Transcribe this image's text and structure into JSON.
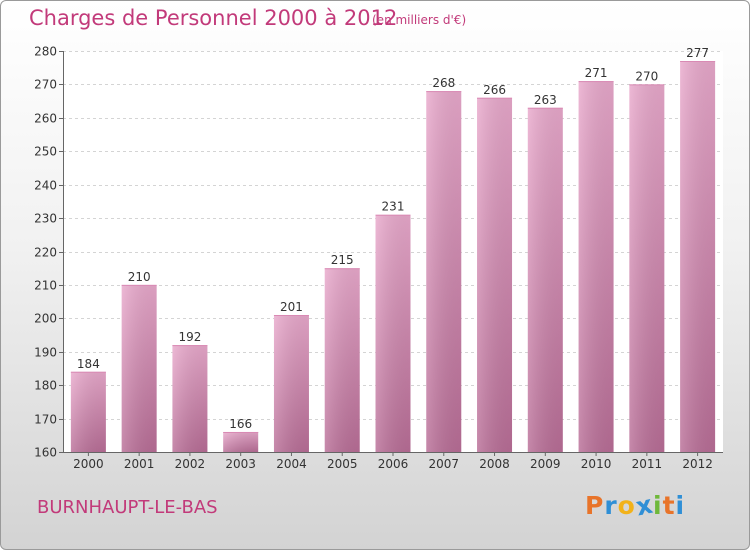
{
  "title": "Charges de Personnel 2000 à 2012",
  "subtitle": "(en milliers d'€)",
  "commune": "BURNHAUPT-LE-BAS",
  "logo": {
    "letters": [
      "P",
      "r",
      "o",
      "x",
      "i",
      "t",
      "i"
    ],
    "colors": [
      "#e8742a",
      "#2f8fd6",
      "#f2b21a",
      "#2f8fd6",
      "#6fb83a",
      "#e8742a",
      "#2f8fd6"
    ]
  },
  "colors": {
    "bar_light": "#e9a9cc",
    "bar_dark": "#b96e97",
    "accent": "#c23a7a"
  },
  "chart_data": {
    "type": "bar",
    "title": "Charges de Personnel 2000 à 2012",
    "subtitle": "(en milliers d'€)",
    "categories": [
      "2000",
      "2001",
      "2002",
      "2003",
      "2004",
      "2005",
      "2006",
      "2007",
      "2008",
      "2009",
      "2010",
      "2011",
      "2012"
    ],
    "values": [
      184,
      210,
      192,
      166,
      201,
      215,
      231,
      268,
      266,
      263,
      271,
      270,
      277
    ],
    "ylim": [
      160,
      280
    ],
    "yticks": [
      160,
      170,
      180,
      190,
      200,
      210,
      220,
      230,
      240,
      250,
      260,
      270,
      280
    ],
    "grid": true,
    "data_labels": true
  }
}
